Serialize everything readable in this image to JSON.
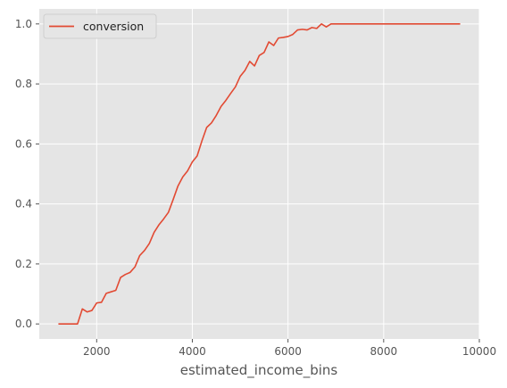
{
  "chart_data": {
    "type": "line",
    "xlabel": "estimated_income_bins",
    "ylabel": "",
    "xlim": [
      800,
      10000
    ],
    "ylim": [
      -0.05,
      1.05
    ],
    "xticks": [
      2000,
      4000,
      6000,
      8000,
      10000
    ],
    "yticks": [
      0.0,
      0.2,
      0.4,
      0.6,
      0.8,
      1.0
    ],
    "xtick_labels": [
      "2000",
      "4000",
      "6000",
      "8000",
      "10000"
    ],
    "ytick_labels": [
      "0.0",
      "0.2",
      "0.4",
      "0.6",
      "0.8",
      "1.0"
    ],
    "grid": true,
    "legend_position": "top-left",
    "colors": {
      "background": "#e5e5e5",
      "grid": "#ffffff",
      "line": "#e24a33"
    },
    "series": [
      {
        "name": "conversion",
        "x": [
          1200,
          1300,
          1400,
          1500,
          1600,
          1700,
          1800,
          1900,
          2000,
          2100,
          2200,
          2300,
          2400,
          2500,
          2600,
          2700,
          2800,
          2900,
          3000,
          3100,
          3200,
          3300,
          3400,
          3500,
          3600,
          3700,
          3800,
          3900,
          4000,
          4100,
          4200,
          4300,
          4400,
          4500,
          4600,
          4700,
          4800,
          4900,
          5000,
          5100,
          5200,
          5300,
          5400,
          5500,
          5600,
          5700,
          5800,
          5900,
          6000,
          6100,
          6200,
          6300,
          6400,
          6500,
          6600,
          6700,
          6800,
          6900,
          7000,
          7200,
          7400,
          7600,
          7800,
          8000,
          8200,
          8400,
          8600,
          8800,
          9000,
          9200,
          9400,
          9600
        ],
        "values": [
          0.0,
          0.0,
          0.0,
          0.0,
          0.0,
          0.05,
          0.04,
          0.045,
          0.07,
          0.072,
          0.102,
          0.107,
          0.112,
          0.155,
          0.165,
          0.172,
          0.19,
          0.228,
          0.245,
          0.268,
          0.305,
          0.33,
          0.35,
          0.372,
          0.415,
          0.46,
          0.49,
          0.51,
          0.54,
          0.56,
          0.61,
          0.655,
          0.67,
          0.695,
          0.725,
          0.745,
          0.768,
          0.79,
          0.825,
          0.845,
          0.875,
          0.86,
          0.895,
          0.905,
          0.94,
          0.928,
          0.953,
          0.955,
          0.958,
          0.965,
          0.98,
          0.982,
          0.98,
          0.988,
          0.985,
          1.0,
          0.99,
          1.0,
          1.0,
          1.0,
          1.0,
          1.0,
          1.0,
          1.0,
          1.0,
          1.0,
          1.0,
          1.0,
          1.0,
          1.0,
          1.0,
          1.0
        ]
      }
    ]
  }
}
